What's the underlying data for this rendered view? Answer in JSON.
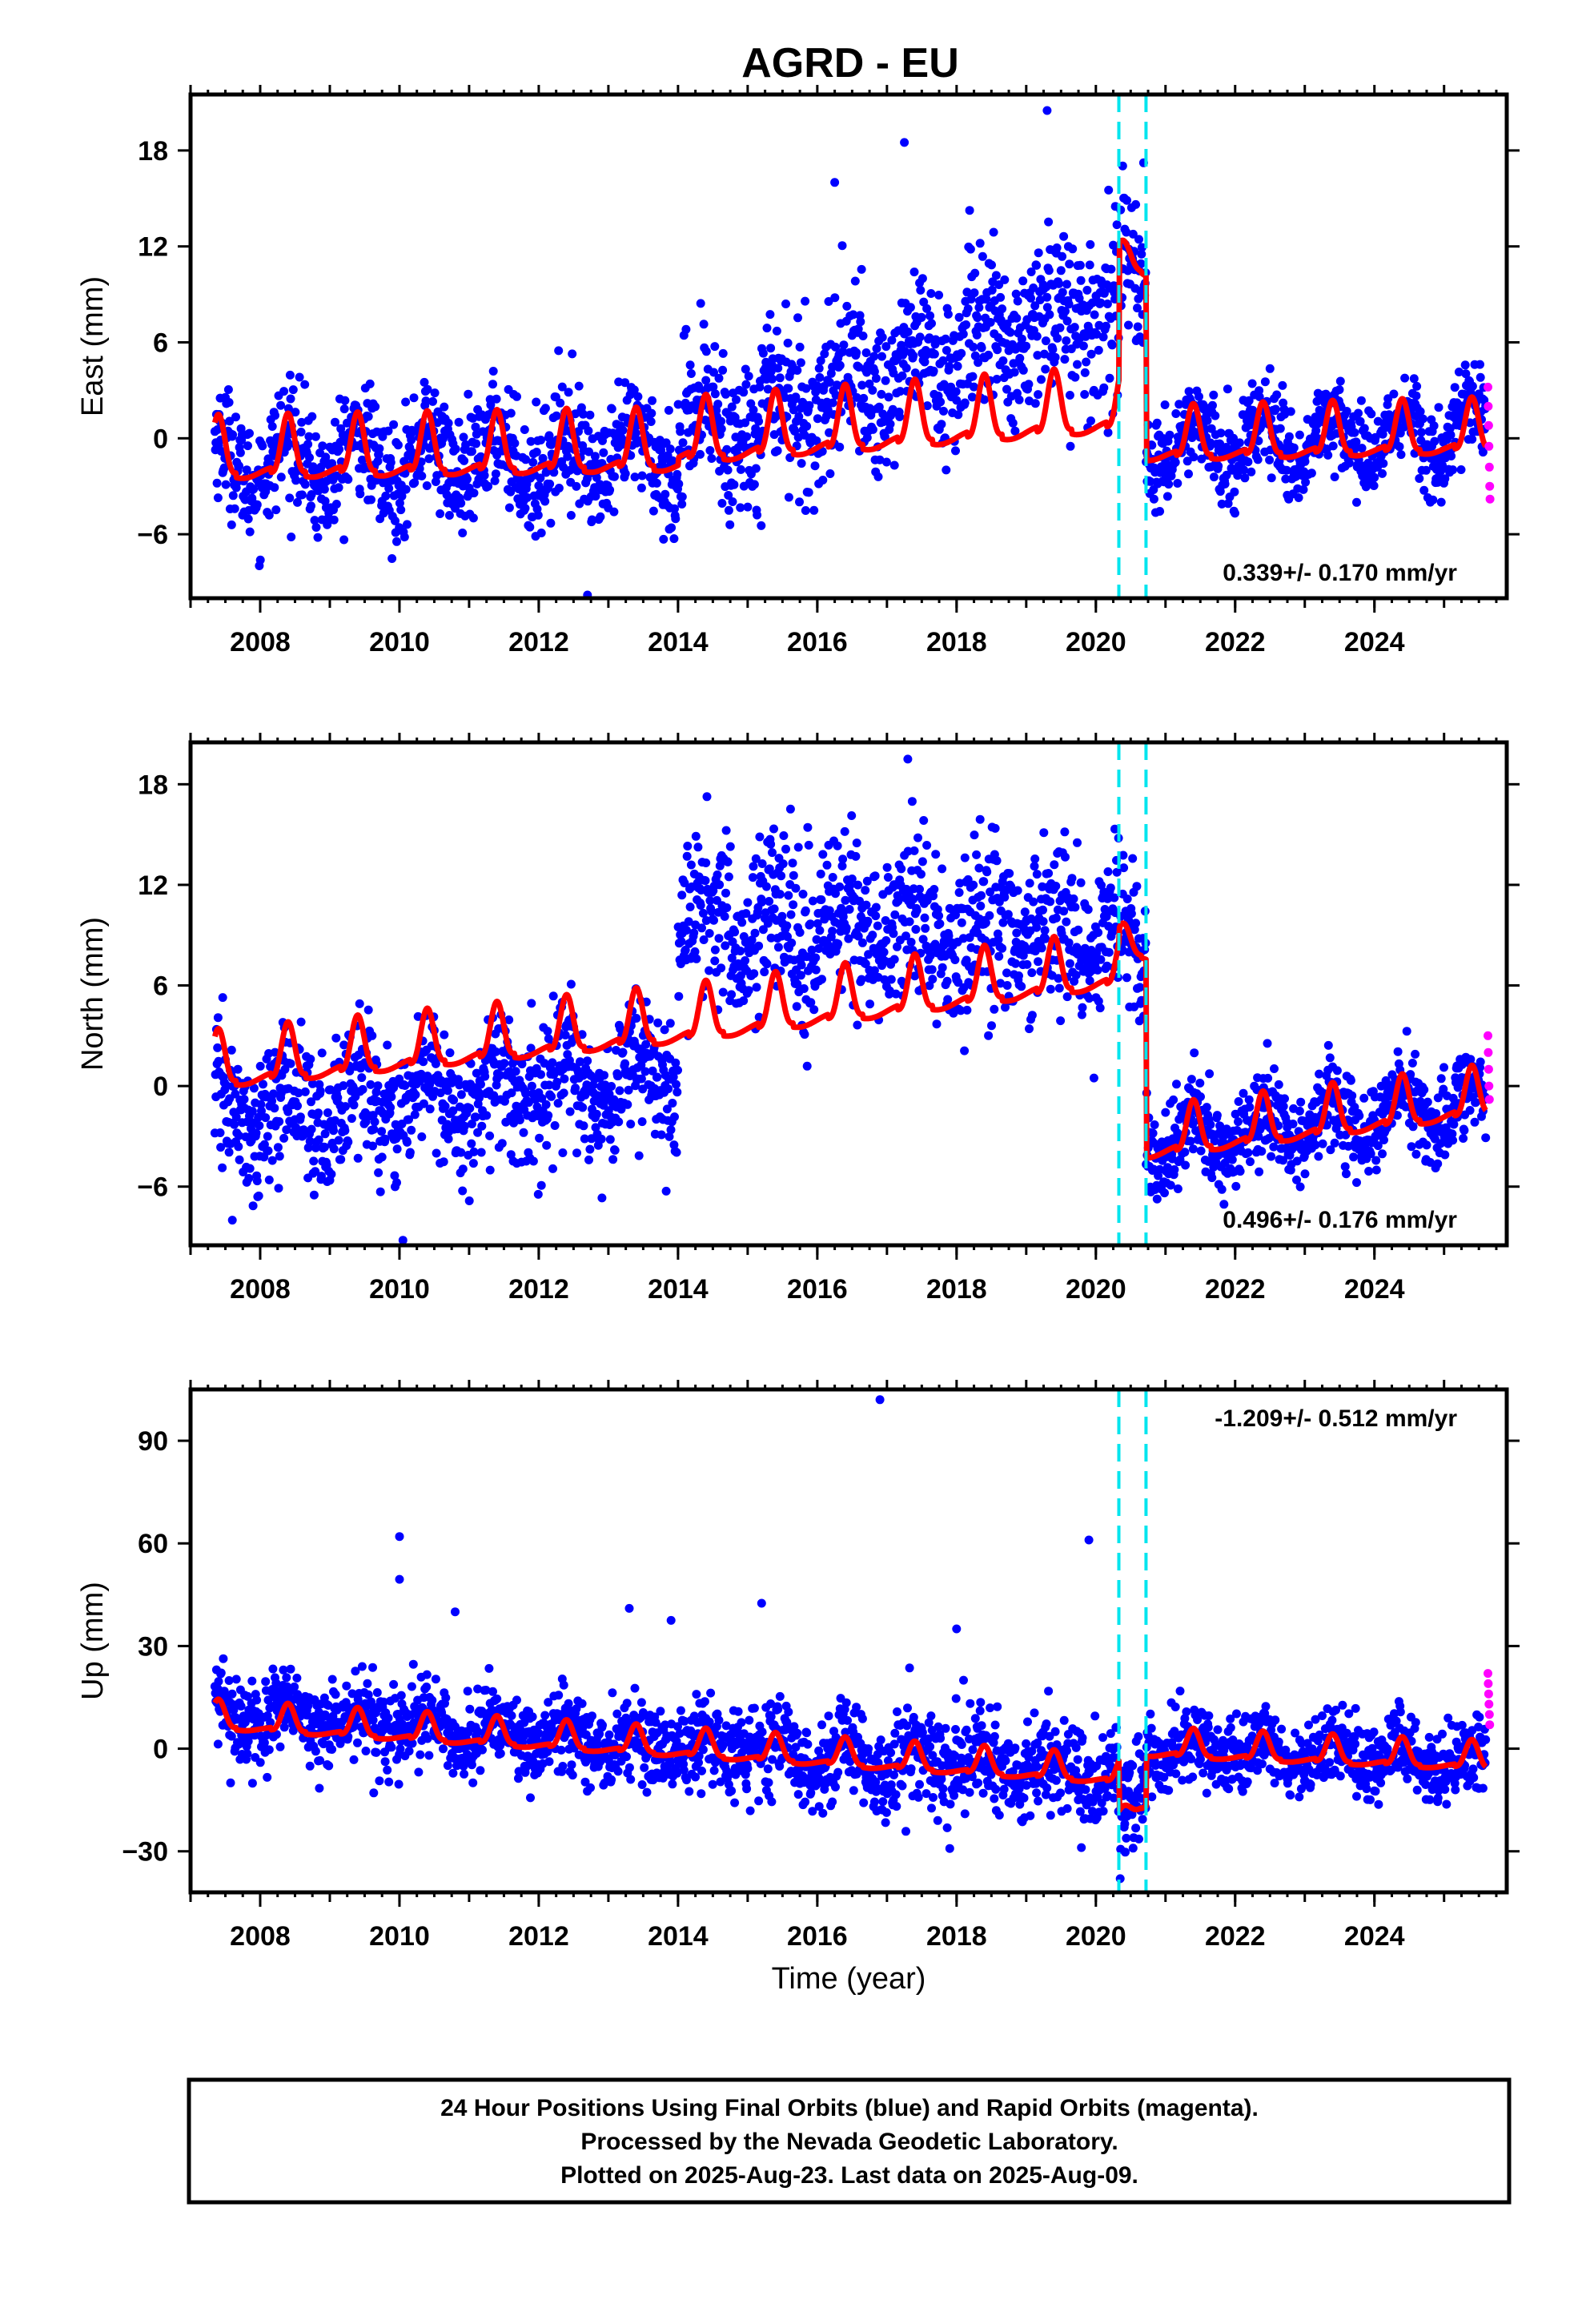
{
  "title": "AGRD - EU",
  "colors": {
    "final_orbits": "#0000ff",
    "rapid_orbits": "#ff00ff",
    "model": "#ff0000",
    "offsets": "#00e5ee",
    "frame": "#000000"
  },
  "caption": {
    "line1": "24 Hour Positions Using Final Orbits (blue) and Rapid Orbits (magenta).",
    "line2": "Processed by the Nevada Geodetic Laboratory.",
    "line3": "Plotted on 2025-Aug-23. Last data on 2025-Aug-09."
  },
  "chart_data": [
    {
      "type": "scatter",
      "component": "east",
      "ylabel": "East (mm)",
      "xlabel": "",
      "xlim": [
        2007.0,
        2025.9
      ],
      "ylim": [
        -10.0,
        21.5
      ],
      "xticks": [
        2008,
        2010,
        2012,
        2014,
        2016,
        2018,
        2020,
        2022,
        2024
      ],
      "yticks": [
        -6,
        0,
        6,
        12,
        18
      ],
      "rate_label": "0.339+/- 0.170 mm/yr",
      "rate_position": "bottom-right",
      "offset_epochs": [
        2020.33,
        2020.72
      ],
      "data_span": [
        2007.35,
        2025.6
      ],
      "series": [
        {
          "name": "Final Orbits",
          "color": "#0000ff",
          "kind": "points"
        },
        {
          "name": "Rapid Orbits",
          "color": "#ff00ff",
          "kind": "points"
        },
        {
          "name": "Model",
          "color": "#ff0000",
          "kind": "line"
        }
      ],
      "model": {
        "segments": [
          {
            "start": 2007.35,
            "end": 2014.0,
            "b0": -1.5,
            "b1": -1.0,
            "amp": 2.3
          },
          {
            "start": 2014.0,
            "end": 2020.33,
            "b0": -0.5,
            "b1": 1.5,
            "amp": 2.4
          },
          {
            "start": 2020.33,
            "end": 2020.72,
            "b0": 11.5,
            "b1": 10.5,
            "amp": 0.8
          },
          {
            "start": 2020.72,
            "end": 2025.6,
            "b0": -0.5,
            "b1": 0.0,
            "amp": 2.0
          }
        ]
      },
      "scatter_profile": {
        "segments": [
          {
            "start": 2007.35,
            "end": 2014.0,
            "b0": -1.5,
            "b1": -1.0,
            "noise": 1.8
          },
          {
            "start": 2014.0,
            "end": 2020.33,
            "b0": 0.0,
            "b1": 8.5,
            "noise": 2.6
          },
          {
            "start": 2020.33,
            "end": 2020.72,
            "b0": 10.5,
            "b1": 10.0,
            "noise": 2.5
          },
          {
            "start": 2020.72,
            "end": 2025.6,
            "b0": -0.5,
            "b1": 0.5,
            "noise": 1.4
          }
        ]
      },
      "rapid_values": [
        3.2,
        2.0,
        0.8,
        -0.5,
        -1.8,
        -3.0,
        -3.8
      ],
      "outliers": [
        [
          2019.3,
          20.5
        ],
        [
          2012.7,
          -9.8
        ],
        [
          2017.25,
          18.5
        ],
        [
          2016.25,
          16.0
        ]
      ]
    },
    {
      "type": "scatter",
      "component": "north",
      "ylabel": "North (mm)",
      "xlabel": "",
      "xlim": [
        2007.0,
        2025.9
      ],
      "ylim": [
        -9.5,
        20.5
      ],
      "xticks": [
        2008,
        2010,
        2012,
        2014,
        2016,
        2018,
        2020,
        2022,
        2024
      ],
      "yticks": [
        -6,
        0,
        6,
        12,
        18
      ],
      "rate_label": "0.496+/- 0.176 mm/yr",
      "rate_position": "bottom-right",
      "offset_epochs": [
        2020.33,
        2020.72
      ],
      "data_span": [
        2007.35,
        2025.6
      ],
      "series": [
        {
          "name": "Final Orbits",
          "color": "#0000ff",
          "kind": "points"
        },
        {
          "name": "Rapid Orbits",
          "color": "#ff00ff",
          "kind": "points"
        },
        {
          "name": "Model",
          "color": "#ff0000",
          "kind": "line"
        }
      ],
      "model": {
        "segments": [
          {
            "start": 2007.35,
            "end": 2014.0,
            "b0": 0.8,
            "b1": 3.5,
            "amp": 2.0
          },
          {
            "start": 2014.0,
            "end": 2020.33,
            "b0": 3.5,
            "b1": 6.8,
            "amp": 2.0
          },
          {
            "start": 2020.33,
            "end": 2020.72,
            "b0": 8.5,
            "b1": 8.0,
            "amp": 1.0
          },
          {
            "start": 2020.72,
            "end": 2025.6,
            "b0": -3.5,
            "b1": -1.0,
            "amp": 1.8
          }
        ]
      },
      "scatter_profile": {
        "segments": [
          {
            "start": 2007.35,
            "end": 2014.0,
            "b0": -1.8,
            "b1": 0.5,
            "noise": 2.0
          },
          {
            "start": 2014.0,
            "end": 2020.33,
            "b0": 9.5,
            "b1": 9.0,
            "noise": 2.6
          },
          {
            "start": 2020.33,
            "end": 2020.72,
            "b0": 9.0,
            "b1": 8.5,
            "noise": 2.5
          },
          {
            "start": 2020.72,
            "end": 2025.6,
            "b0": -3.5,
            "b1": -1.0,
            "noise": 1.4
          }
        ]
      },
      "rapid_values": [
        3.0,
        2.0,
        1.0,
        0.0,
        -0.8
      ],
      "outliers": [
        [
          2017.3,
          19.5
        ],
        [
          2007.6,
          -8.0
        ],
        [
          2010.05,
          -9.2
        ]
      ]
    },
    {
      "type": "scatter",
      "component": "up",
      "ylabel": "Up (mm)",
      "xlabel": "Time (year)",
      "xlim": [
        2007.0,
        2025.9
      ],
      "ylim": [
        -42.0,
        105.0
      ],
      "xticks": [
        2008,
        2010,
        2012,
        2014,
        2016,
        2018,
        2020,
        2022,
        2024
      ],
      "yticks": [
        -30,
        0,
        30,
        60,
        90
      ],
      "rate_label": "-1.209+/- 0.512 mm/yr",
      "rate_position": "top-right",
      "offset_epochs": [
        2020.33,
        2020.72
      ],
      "data_span": [
        2007.35,
        2025.6
      ],
      "series": [
        {
          "name": "Final Orbits",
          "color": "#0000ff",
          "kind": "points"
        },
        {
          "name": "Rapid Orbits",
          "color": "#ff00ff",
          "kind": "points"
        },
        {
          "name": "Model",
          "color": "#ff0000",
          "kind": "line"
        }
      ],
      "model": {
        "segments": [
          {
            "start": 2007.35,
            "end": 2014.0,
            "b0": 8.0,
            "b1": 0.0,
            "amp": 5.0
          },
          {
            "start": 2014.0,
            "end": 2020.33,
            "b0": 0.0,
            "b1": -8.0,
            "amp": 5.0
          },
          {
            "start": 2020.33,
            "end": 2020.72,
            "b0": -20.0,
            "b1": -16.0,
            "amp": 2.0
          },
          {
            "start": 2020.72,
            "end": 2025.6,
            "b0": 0.0,
            "b1": -4.0,
            "amp": 5.0
          }
        ]
      },
      "scatter_profile": {
        "segments": [
          {
            "start": 2007.35,
            "end": 2014.0,
            "b0": 10.0,
            "b1": 1.0,
            "noise": 6.0
          },
          {
            "start": 2014.0,
            "end": 2020.33,
            "b0": 0.0,
            "b1": -7.0,
            "noise": 7.0
          },
          {
            "start": 2020.33,
            "end": 2020.72,
            "b0": -18.0,
            "b1": -12.0,
            "noise": 8.0
          },
          {
            "start": 2020.72,
            "end": 2025.6,
            "b0": 0.0,
            "b1": -3.0,
            "noise": 5.5
          }
        ]
      },
      "rapid_values": [
        22.0,
        19.0,
        16.0,
        13.0,
        10.0,
        7.0
      ],
      "outliers": [
        [
          2016.9,
          102.0
        ],
        [
          2010.0,
          62.0
        ],
        [
          2010.0,
          49.5
        ],
        [
          2019.9,
          61.0
        ],
        [
          2015.2,
          42.5
        ],
        [
          2013.3,
          41.0
        ],
        [
          2013.9,
          37.5
        ],
        [
          2010.8,
          40.0
        ],
        [
          2018.0,
          35.0
        ],
        [
          2018.1,
          20.0
        ],
        [
          2020.35,
          -38.0
        ]
      ]
    }
  ]
}
